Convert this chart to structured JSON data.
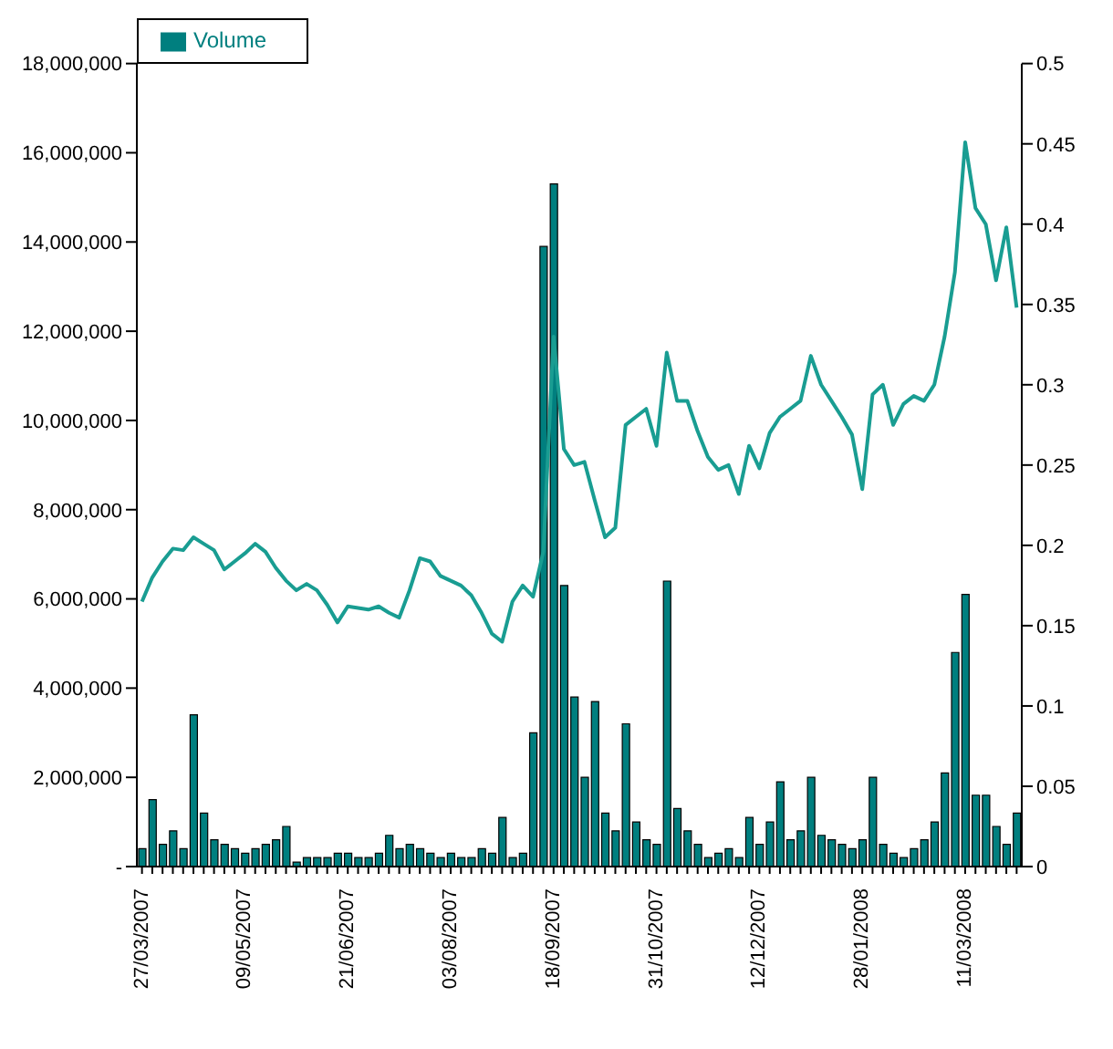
{
  "chart_data": {
    "type": "bar",
    "categories": [
      "27/03/2007",
      null,
      null,
      null,
      null,
      null,
      null,
      null,
      null,
      null,
      "09/05/2007",
      null,
      null,
      null,
      null,
      null,
      null,
      null,
      null,
      null,
      "21/06/2007",
      null,
      null,
      null,
      null,
      null,
      null,
      null,
      null,
      null,
      "03/08/2007",
      null,
      null,
      null,
      null,
      null,
      null,
      null,
      null,
      null,
      "18/09/2007",
      null,
      null,
      null,
      null,
      null,
      null,
      null,
      null,
      null,
      "31/10/2007",
      null,
      null,
      null,
      null,
      null,
      null,
      null,
      null,
      null,
      "12/12/2007",
      null,
      null,
      null,
      null,
      null,
      null,
      null,
      null,
      null,
      "28/01/2008",
      null,
      null,
      null,
      null,
      null,
      null,
      null,
      null,
      null,
      "11/03/2008",
      null,
      null,
      null,
      null,
      null
    ],
    "series": [
      {
        "name": "Volume",
        "color": "#007f7f",
        "values": [
          400000,
          1500000,
          500000,
          800000,
          400000,
          3400000,
          1200000,
          600000,
          500000,
          400000,
          300000,
          400000,
          500000,
          600000,
          900000,
          100000,
          200000,
          200000,
          200000,
          300000,
          300000,
          200000,
          200000,
          300000,
          700000,
          400000,
          500000,
          400000,
          300000,
          200000,
          300000,
          200000,
          200000,
          400000,
          300000,
          1100000,
          200000,
          300000,
          3000000,
          13900000,
          15300000,
          6300000,
          3800000,
          2000000,
          3700000,
          1200000,
          800000,
          3200000,
          1000000,
          600000,
          500000,
          6400000,
          1300000,
          800000,
          500000,
          200000,
          300000,
          400000,
          200000,
          1100000,
          500000,
          1000000,
          1900000,
          600000,
          800000,
          2000000,
          700000,
          600000,
          500000,
          400000,
          600000,
          2000000,
          500000,
          300000,
          200000,
          400000,
          600000,
          1000000,
          2100000,
          4800000,
          6100000,
          1600000,
          1600000,
          900000,
          500000,
          1200000
        ]
      },
      {
        "type": "line",
        "axis": "y2",
        "color": "#199d92",
        "values": [
          0.165,
          0.18,
          0.19,
          0.198,
          0.197,
          0.205,
          0.201,
          0.197,
          0.185,
          0.19,
          0.195,
          0.201,
          0.196,
          0.186,
          0.178,
          0.172,
          0.176,
          0.172,
          0.163,
          0.152,
          0.162,
          0.161,
          0.16,
          0.162,
          0.158,
          0.155,
          0.172,
          0.192,
          0.19,
          0.181,
          0.178,
          0.175,
          0.169,
          0.158,
          0.145,
          0.14,
          0.165,
          0.175,
          0.168,
          0.196,
          0.33,
          0.26,
          0.25,
          0.252,
          0.228,
          0.205,
          0.211,
          0.275,
          0.28,
          0.285,
          0.262,
          0.32,
          0.29,
          0.29,
          0.271,
          0.255,
          0.247,
          0.25,
          0.232,
          0.262,
          0.248,
          0.27,
          0.28,
          0.285,
          0.29,
          0.318,
          0.3,
          0.29,
          0.28,
          0.269,
          0.235,
          0.294,
          0.3,
          0.275,
          0.288,
          0.293,
          0.29,
          0.3,
          0.33,
          0.37,
          0.451,
          0.41,
          0.4,
          0.365,
          0.398,
          0.348
        ]
      }
    ],
    "ylim": [
      0,
      18000000
    ],
    "yticks": [
      {
        "value": 0,
        "label": "-"
      },
      {
        "value": 2000000,
        "label": "2,000,000"
      },
      {
        "value": 4000000,
        "label": "4,000,000"
      },
      {
        "value": 6000000,
        "label": "6,000,000"
      },
      {
        "value": 8000000,
        "label": "8,000,000"
      },
      {
        "value": 10000000,
        "label": "10,000,000"
      },
      {
        "value": 12000000,
        "label": "12,000,000"
      },
      {
        "value": 14000000,
        "label": "14,000,000"
      },
      {
        "value": 16000000,
        "label": "16,000,000"
      },
      {
        "value": 18000000,
        "label": "18,000,000"
      }
    ],
    "y2lim": [
      0,
      0.5
    ],
    "y2ticks": [
      0,
      0.05,
      0.1,
      0.15,
      0.2,
      0.25,
      0.3,
      0.35,
      0.4,
      0.45,
      0.5
    ],
    "legend": "top left"
  }
}
